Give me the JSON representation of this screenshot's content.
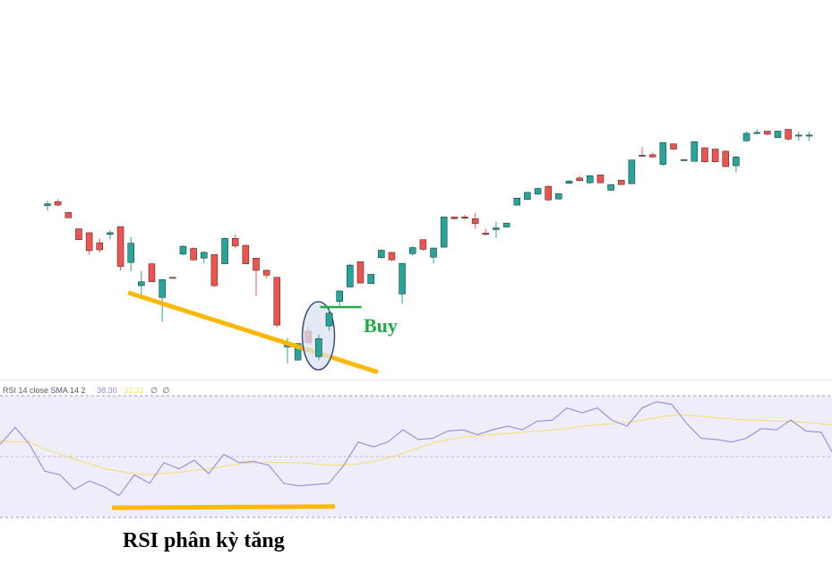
{
  "colors": {
    "up": "#26a69a",
    "down": "#ef5350",
    "rsi_line": "#9988dd",
    "rsi_sma": "#f2e06a",
    "rsi_band": "#f0edfb",
    "divergence": "#fbb806",
    "buy_marker": "#22aa44",
    "buy_text": "#22aa44",
    "ellipse_fill": "#dbe3ef",
    "ellipse_stroke": "#3a4f80"
  },
  "rsi_panel": {
    "name": "RSI 14 close SMA 14 2",
    "rsi_value": "38.30",
    "sma_value": "33.33",
    "extra_1": "∅",
    "extra_2": "∅"
  },
  "annotations": {
    "buy_label": "Buy",
    "caption": "RSI phân kỳ tăng"
  },
  "chart_data": {
    "type": "candlestick",
    "candles": [
      {
        "o": 100.6,
        "c": 101.0,
        "h": 101.7,
        "l": 99.5,
        "dir": "up"
      },
      {
        "o": 101.5,
        "c": 100.7,
        "h": 102.1,
        "l": 100.5,
        "dir": "down"
      },
      {
        "o": 99.0,
        "c": 97.8,
        "h": 99.2,
        "l": 97.8,
        "dir": "down"
      },
      {
        "o": 95.3,
        "c": 92.8,
        "h": 95.3,
        "l": 92.7,
        "dir": "down"
      },
      {
        "o": 94.4,
        "c": 90.3,
        "h": 94.4,
        "l": 89.4,
        "dir": "down"
      },
      {
        "o": 92.1,
        "c": 90.5,
        "h": 93.1,
        "l": 89.9,
        "dir": "down"
      },
      {
        "o": 94.0,
        "c": 94.4,
        "h": 95.0,
        "l": 92.8,
        "dir": "up"
      },
      {
        "o": 95.8,
        "c": 86.7,
        "h": 95.8,
        "l": 85.8,
        "dir": "down"
      },
      {
        "o": 87.6,
        "c": 92.0,
        "h": 93.4,
        "l": 85.6,
        "dir": "up"
      },
      {
        "o": 82.3,
        "c": 83.2,
        "h": 85.6,
        "l": 79.6,
        "dir": "up"
      },
      {
        "o": 87.3,
        "c": 83.2,
        "h": 87.3,
        "l": 83.1,
        "dir": "down"
      },
      {
        "o": 79.6,
        "c": 83.7,
        "h": 83.7,
        "l": 74.1,
        "dir": "up"
      },
      {
        "o": 84.2,
        "c": 84.2,
        "h": 84.3,
        "l": 84.1,
        "dir": "down"
      },
      {
        "o": 89.5,
        "c": 91.3,
        "h": 91.5,
        "l": 89.3,
        "dir": "up"
      },
      {
        "o": 90.8,
        "c": 88.2,
        "h": 91.1,
        "l": 88.0,
        "dir": "down"
      },
      {
        "o": 88.6,
        "c": 89.9,
        "h": 90.2,
        "l": 87.4,
        "dir": "up"
      },
      {
        "o": 89.4,
        "c": 82.3,
        "h": 89.4,
        "l": 82.0,
        "dir": "down"
      },
      {
        "o": 87.3,
        "c": 93.1,
        "h": 93.3,
        "l": 87.2,
        "dir": "up"
      },
      {
        "o": 93.1,
        "c": 91.4,
        "h": 94.0,
        "l": 90.9,
        "dir": "down"
      },
      {
        "o": 91.5,
        "c": 87.3,
        "h": 91.8,
        "l": 87.2,
        "dir": "down"
      },
      {
        "o": 88.6,
        "c": 85.8,
        "h": 88.6,
        "l": 80.0,
        "dir": "down"
      },
      {
        "o": 85.8,
        "c": 84.7,
        "h": 86.0,
        "l": 84.0,
        "dir": "down"
      },
      {
        "o": 84.2,
        "c": 73.3,
        "h": 84.2,
        "l": 72.8,
        "dir": "down"
      },
      {
        "o": 68.3,
        "c": 69.1,
        "h": 70.3,
        "l": 64.6,
        "dir": "up"
      },
      {
        "o": 65.3,
        "c": 69.1,
        "h": 69.1,
        "l": 65.3,
        "dir": "up"
      },
      {
        "o": 71.9,
        "c": 69.3,
        "h": 72.8,
        "l": 69.1,
        "dir": "down"
      },
      {
        "o": 66.1,
        "c": 70.2,
        "h": 71.1,
        "l": 65.3,
        "dir": "up"
      },
      {
        "o": 73.1,
        "c": 76.0,
        "h": 77.2,
        "l": 72.0,
        "dir": "up"
      },
      {
        "o": 78.7,
        "c": 81.1,
        "h": 81.1,
        "l": 77.5,
        "dir": "up"
      },
      {
        "o": 82.0,
        "c": 87.0,
        "h": 87.3,
        "l": 81.9,
        "dir": "up"
      },
      {
        "o": 87.8,
        "c": 82.9,
        "h": 87.8,
        "l": 82.8,
        "dir": "down"
      },
      {
        "o": 82.8,
        "c": 84.9,
        "h": 84.9,
        "l": 82.6,
        "dir": "up"
      },
      {
        "o": 88.7,
        "c": 90.4,
        "h": 90.5,
        "l": 88.5,
        "dir": "up"
      },
      {
        "o": 89.9,
        "c": 88.2,
        "h": 89.9,
        "l": 87.9,
        "dir": "down"
      },
      {
        "o": 80.4,
        "c": 87.4,
        "h": 87.4,
        "l": 78.2,
        "dir": "up"
      },
      {
        "o": 89.6,
        "c": 91.0,
        "h": 91.3,
        "l": 89.2,
        "dir": "up"
      },
      {
        "o": 92.8,
        "c": 90.6,
        "h": 92.8,
        "l": 90.3,
        "dir": "down"
      },
      {
        "o": 88.8,
        "c": 90.9,
        "h": 90.9,
        "l": 87.4,
        "dir": "up"
      },
      {
        "o": 91.1,
        "c": 98.0,
        "h": 98.1,
        "l": 91.0,
        "dir": "up"
      },
      {
        "o": 98.0,
        "c": 97.6,
        "h": 98.1,
        "l": 97.4,
        "dir": "down"
      },
      {
        "o": 98.0,
        "c": 97.7,
        "h": 98.5,
        "l": 97.4,
        "dir": "down"
      },
      {
        "o": 97.6,
        "c": 96.5,
        "h": 98.9,
        "l": 95.3,
        "dir": "down"
      },
      {
        "o": 94.3,
        "c": 94.0,
        "h": 95.3,
        "l": 93.8,
        "dir": "down"
      },
      {
        "o": 95.1,
        "c": 95.5,
        "h": 96.9,
        "l": 93.2,
        "dir": "up"
      },
      {
        "o": 95.7,
        "c": 96.6,
        "h": 96.7,
        "l": 95.6,
        "dir": "up"
      },
      {
        "o": 100.7,
        "c": 102.3,
        "h": 102.3,
        "l": 100.6,
        "dir": "up"
      },
      {
        "o": 102.0,
        "c": 103.6,
        "h": 103.7,
        "l": 101.9,
        "dir": "up"
      },
      {
        "o": 103.2,
        "c": 104.5,
        "h": 104.7,
        "l": 103.0,
        "dir": "up"
      },
      {
        "o": 105.0,
        "c": 101.9,
        "h": 105.2,
        "l": 101.6,
        "dir": "down"
      },
      {
        "o": 102.1,
        "c": 103.3,
        "h": 103.5,
        "l": 102.0,
        "dir": "up"
      },
      {
        "o": 105.7,
        "c": 106.2,
        "h": 106.4,
        "l": 105.5,
        "dir": "up"
      },
      {
        "o": 106.9,
        "c": 106.3,
        "h": 107.4,
        "l": 106.2,
        "dir": "down"
      },
      {
        "o": 105.8,
        "c": 107.4,
        "h": 107.6,
        "l": 105.6,
        "dir": "up"
      },
      {
        "o": 107.6,
        "c": 105.8,
        "h": 107.6,
        "l": 105.7,
        "dir": "down"
      },
      {
        "o": 104.1,
        "c": 105.4,
        "h": 105.5,
        "l": 104.0,
        "dir": "up"
      },
      {
        "o": 106.4,
        "c": 105.4,
        "h": 106.4,
        "l": 105.3,
        "dir": "down"
      },
      {
        "o": 105.6,
        "c": 111.0,
        "h": 111.0,
        "l": 105.5,
        "dir": "up"
      },
      {
        "o": 112.1,
        "c": 112.1,
        "h": 114.0,
        "l": 111.8,
        "dir": "down"
      },
      {
        "o": 112.2,
        "c": 111.7,
        "h": 112.7,
        "l": 111.5,
        "dir": "down"
      },
      {
        "o": 110.0,
        "c": 115.0,
        "h": 115.0,
        "l": 109.7,
        "dir": "up"
      },
      {
        "o": 114.7,
        "c": 113.5,
        "h": 114.7,
        "l": 113.3,
        "dir": "down"
      },
      {
        "o": 110.9,
        "c": 111.1,
        "h": 111.2,
        "l": 110.8,
        "dir": "up"
      },
      {
        "o": 110.7,
        "c": 115.2,
        "h": 115.2,
        "l": 110.7,
        "dir": "up"
      },
      {
        "o": 113.8,
        "c": 110.6,
        "h": 113.9,
        "l": 110.4,
        "dir": "down"
      },
      {
        "o": 113.5,
        "c": 110.6,
        "h": 113.5,
        "l": 110.4,
        "dir": "down"
      },
      {
        "o": 113.0,
        "c": 109.5,
        "h": 113.2,
        "l": 109.4,
        "dir": "down"
      },
      {
        "o": 109.7,
        "c": 111.7,
        "h": 112.0,
        "l": 108.2,
        "dir": "up"
      },
      {
        "o": 115.4,
        "c": 117.1,
        "h": 117.5,
        "l": 115.2,
        "dir": "up"
      },
      {
        "o": 117.3,
        "c": 117.3,
        "h": 118.0,
        "l": 116.8,
        "dir": "up"
      },
      {
        "o": 117.6,
        "c": 116.9,
        "h": 117.6,
        "l": 116.6,
        "dir": "down"
      },
      {
        "o": 116.1,
        "c": 117.6,
        "h": 117.7,
        "l": 116.1,
        "dir": "up"
      },
      {
        "o": 118.0,
        "c": 115.8,
        "h": 118.0,
        "l": 115.4,
        "dir": "down"
      },
      {
        "o": 116.7,
        "c": 116.7,
        "h": 117.5,
        "l": 115.4,
        "dir": "up"
      },
      {
        "o": 116.7,
        "c": 116.7,
        "h": 117.5,
        "l": 115.4,
        "dir": "up"
      }
    ],
    "rsi": {
      "name": "RSI 14 close SMA 14 2",
      "range": [
        0,
        100
      ],
      "bands": [
        30,
        70
      ],
      "x": [
        0,
        17,
        33,
        50,
        67,
        83,
        100,
        117,
        133,
        150,
        167,
        183,
        200,
        217,
        233,
        250,
        267,
        283,
        300,
        317,
        333,
        350,
        367,
        383,
        400,
        417,
        433,
        450,
        467,
        483,
        500,
        517,
        533,
        550,
        567,
        583,
        600,
        617,
        633,
        650,
        667,
        683,
        700,
        717,
        733,
        750,
        767,
        783,
        800,
        817,
        833,
        850,
        867,
        883,
        900,
        917,
        929
      ],
      "values": [
        60,
        74,
        60,
        38,
        35,
        23,
        30,
        25,
        18,
        35,
        28,
        45,
        40,
        47,
        36,
        52,
        45,
        46,
        43,
        28,
        26,
        27,
        28,
        42,
        62,
        58,
        62,
        72,
        64,
        65,
        71,
        72,
        68,
        72,
        75,
        72,
        79,
        80,
        90,
        86,
        90,
        80,
        75,
        90,
        95,
        93,
        77,
        65,
        64,
        62,
        65,
        73,
        72,
        80,
        71,
        70,
        54
      ],
      "sma": [
        63,
        62,
        62,
        56,
        52,
        48,
        44,
        40,
        38,
        36,
        35,
        36,
        37,
        39,
        40,
        42,
        44,
        45,
        45,
        45,
        45,
        44,
        43,
        43,
        44,
        46,
        49,
        53,
        57,
        61,
        64,
        66,
        67,
        68,
        69,
        70,
        71,
        72,
        73,
        75,
        76,
        77,
        78,
        80,
        82,
        84,
        84,
        83,
        82,
        81,
        80,
        80,
        79,
        79,
        78,
        77,
        76
      ],
      "legend_values": {
        "rsi": "38.30",
        "sma": "33.33"
      }
    },
    "divergence_lines": {
      "price": {
        "from_candle": 11,
        "to_candle": 26,
        "from_price": 80.7,
        "to_price": 64.4
      },
      "rsi": {
        "from_x": 125,
        "to_x": 374,
        "from_value": 8,
        "to_value": 9
      }
    },
    "buy_signal": {
      "candle": 27
    }
  }
}
